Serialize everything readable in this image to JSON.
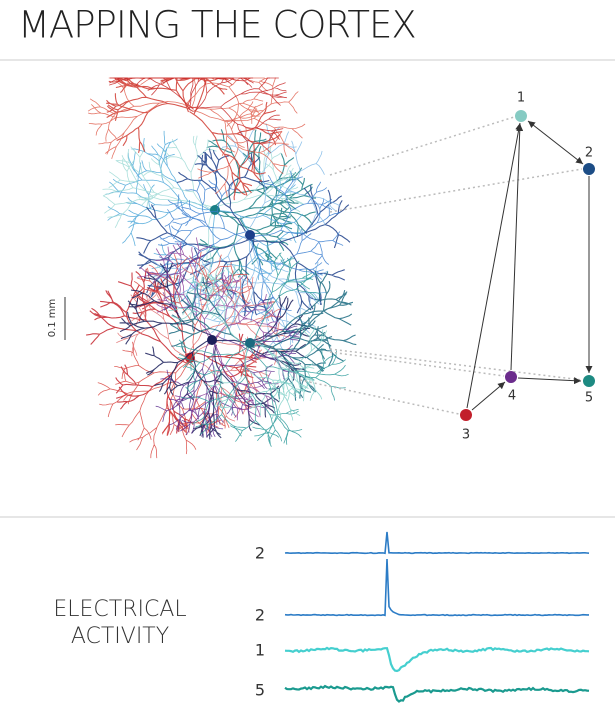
{
  "header": {
    "title": "MAPPING THE CORTEX"
  },
  "scale_bar": {
    "label": "0.1 mm"
  },
  "nodes": [
    {
      "label": "1",
      "color": "#86cbc3"
    },
    {
      "label": "2",
      "color": "#1c4d86"
    },
    {
      "label": "3",
      "color": "#c21f2b"
    },
    {
      "label": "4",
      "color": "#6b2c8c"
    },
    {
      "label": "5",
      "color": "#1d8a82"
    }
  ],
  "activity": {
    "title_lines": [
      "ELECTRICAL",
      "ACTIVITY"
    ],
    "traces": [
      {
        "label": "2",
        "color": "#2c7cc6"
      },
      {
        "label": "2",
        "color": "#2c7cc6"
      },
      {
        "label": "1",
        "color": "#45cfcf"
      },
      {
        "label": "5",
        "color": "#1a9a8f"
      }
    ]
  }
}
